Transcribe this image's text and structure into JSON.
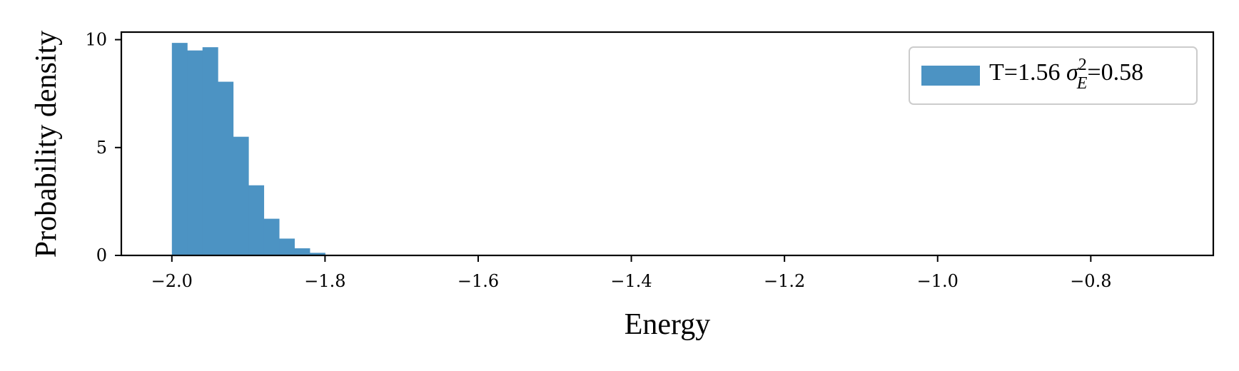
{
  "chart_data": {
    "type": "bar",
    "title": "",
    "xlabel": "Energy",
    "ylabel": "Probability density",
    "xlim": [
      -2.066,
      -0.64
    ],
    "ylim": [
      0,
      10.35
    ],
    "xticks": [
      -2.0,
      -1.8,
      -1.6,
      -1.4,
      -1.2,
      -1.0,
      -0.8
    ],
    "xtick_labels": [
      "−2.0",
      "−1.8",
      "−1.6",
      "−1.4",
      "−1.2",
      "−1.0",
      "−0.8"
    ],
    "yticks": [
      0,
      5,
      10
    ],
    "ytick_labels": [
      "0",
      "5",
      "10"
    ],
    "grid": false,
    "legend": {
      "placement": "top-right",
      "label_prefix": "T=1.56 ",
      "label_sigma": "σ",
      "label_sup": "2",
      "label_sub": "E",
      "label_suffix": "=0.58"
    },
    "series": [
      {
        "color": "#4c93c3",
        "bins": [
          {
            "x0": -2.0,
            "x1": -1.98,
            "y": 9.85
          },
          {
            "x0": -1.98,
            "x1": -1.96,
            "y": 9.5
          },
          {
            "x0": -1.96,
            "x1": -1.94,
            "y": 9.65
          },
          {
            "x0": -1.94,
            "x1": -1.92,
            "y": 8.05
          },
          {
            "x0": -1.92,
            "x1": -1.9,
            "y": 5.5
          },
          {
            "x0": -1.9,
            "x1": -1.88,
            "y": 3.25
          },
          {
            "x0": -1.88,
            "x1": -1.86,
            "y": 1.7
          },
          {
            "x0": -1.86,
            "x1": -1.84,
            "y": 0.78
          },
          {
            "x0": -1.84,
            "x1": -1.82,
            "y": 0.33
          },
          {
            "x0": -1.82,
            "x1": -1.8,
            "y": 0.12
          }
        ]
      }
    ]
  }
}
